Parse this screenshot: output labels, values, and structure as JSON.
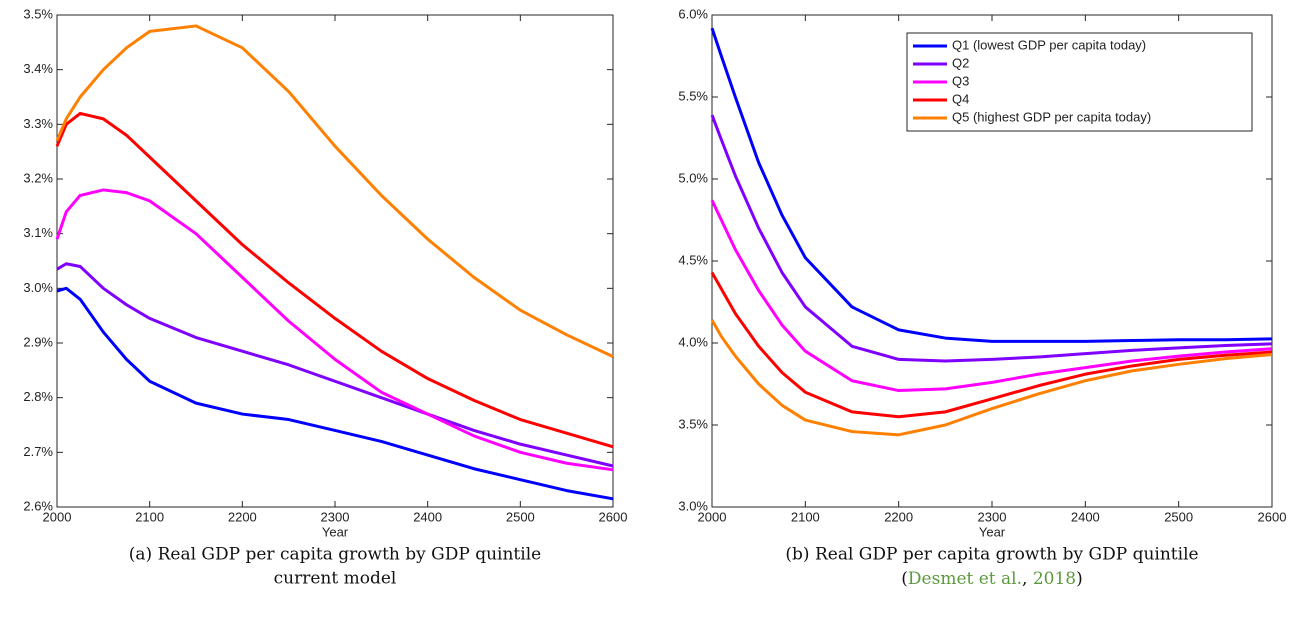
{
  "chart_data": [
    {
      "type": "line",
      "x": [
        2000,
        2010,
        2025,
        2050,
        2075,
        2100,
        2150,
        2200,
        2250,
        2300,
        2350,
        2400,
        2450,
        2500,
        2550,
        2600
      ],
      "xlim": [
        2000,
        2600
      ],
      "xticks": [
        2000,
        2100,
        2200,
        2300,
        2400,
        2500,
        2600
      ],
      "xlabel": "Year",
      "ylim": [
        2.6,
        3.5
      ],
      "yticks": [
        {
          "value": 2.6,
          "label": "2.6%"
        },
        {
          "value": 2.7,
          "label": "2.7%"
        },
        {
          "value": 2.8,
          "label": "2.8%"
        },
        {
          "value": 2.9,
          "label": "2.9%"
        },
        {
          "value": 3.0,
          "label": "3.0%"
        },
        {
          "value": 3.1,
          "label": "3.1%"
        },
        {
          "value": 3.2,
          "label": "3.2%"
        },
        {
          "value": 3.3,
          "label": "3.3%"
        },
        {
          "value": 3.4,
          "label": "3.4%"
        },
        {
          "value": 3.5,
          "label": "3.5%"
        }
      ],
      "series": [
        {
          "color": "#0000ff",
          "values": [
            2.995,
            3.0,
            2.98,
            2.92,
            2.87,
            2.83,
            2.79,
            2.77,
            2.76,
            2.74,
            2.72,
            2.695,
            2.67,
            2.65,
            2.63,
            2.615
          ]
        },
        {
          "color": "#7f00ff",
          "values": [
            3.035,
            3.045,
            3.04,
            3.0,
            2.97,
            2.945,
            2.91,
            2.885,
            2.86,
            2.83,
            2.8,
            2.77,
            2.74,
            2.715,
            2.695,
            2.675
          ]
        },
        {
          "color": "#ff00ff",
          "values": [
            3.09,
            3.14,
            3.17,
            3.18,
            3.175,
            3.16,
            3.1,
            3.02,
            2.94,
            2.87,
            2.81,
            2.77,
            2.73,
            2.7,
            2.68,
            2.668
          ]
        },
        {
          "color": "#ff0000",
          "values": [
            3.26,
            3.3,
            3.32,
            3.31,
            3.28,
            3.24,
            3.16,
            3.08,
            3.01,
            2.945,
            2.885,
            2.835,
            2.795,
            2.76,
            2.735,
            2.71
          ]
        },
        {
          "color": "#ff8000",
          "values": [
            3.27,
            3.31,
            3.35,
            3.4,
            3.44,
            3.47,
            3.48,
            3.44,
            3.36,
            3.26,
            3.17,
            3.09,
            3.02,
            2.96,
            2.915,
            2.875
          ]
        }
      ],
      "caption": [
        "(a) Real GDP per capita growth by GDP quintile",
        "current model"
      ]
    },
    {
      "type": "line",
      "x": [
        2000,
        2010,
        2025,
        2050,
        2075,
        2100,
        2150,
        2200,
        2250,
        2300,
        2350,
        2400,
        2450,
        2500,
        2550,
        2600
      ],
      "xlim": [
        2000,
        2600
      ],
      "xticks": [
        2000,
        2100,
        2200,
        2300,
        2400,
        2500,
        2600
      ],
      "xlabel": "Year",
      "ylim": [
        3.0,
        6.0
      ],
      "yticks": [
        {
          "value": 3.0,
          "label": "3.0%"
        },
        {
          "value": 3.5,
          "label": "3.5%"
        },
        {
          "value": 4.0,
          "label": "4.0%"
        },
        {
          "value": 4.5,
          "label": "4.5%"
        },
        {
          "value": 5.0,
          "label": "5.0%"
        },
        {
          "value": 5.5,
          "label": "5.5%"
        },
        {
          "value": 6.0,
          "label": "6.0%"
        }
      ],
      "legend": "northeast",
      "series": [
        {
          "name": "Q1 (lowest GDP per capita today)",
          "color": "#0000ff",
          "values": [
            5.92,
            5.75,
            5.5,
            5.1,
            4.78,
            4.52,
            4.22,
            4.08,
            4.03,
            4.01,
            4.01,
            4.01,
            4.015,
            4.02,
            4.02,
            4.025
          ]
        },
        {
          "name": "Q2",
          "color": "#7f00ff",
          "values": [
            5.39,
            5.24,
            5.02,
            4.7,
            4.43,
            4.22,
            3.98,
            3.9,
            3.89,
            3.9,
            3.915,
            3.935,
            3.955,
            3.97,
            3.985,
            3.995
          ]
        },
        {
          "name": "Q3",
          "color": "#ff00ff",
          "values": [
            4.87,
            4.75,
            4.57,
            4.32,
            4.11,
            3.95,
            3.77,
            3.71,
            3.72,
            3.76,
            3.81,
            3.85,
            3.89,
            3.92,
            3.945,
            3.965
          ]
        },
        {
          "name": "Q4",
          "color": "#ff0000",
          "values": [
            4.43,
            4.33,
            4.18,
            3.98,
            3.82,
            3.7,
            3.58,
            3.55,
            3.58,
            3.66,
            3.74,
            3.81,
            3.86,
            3.9,
            3.925,
            3.945
          ]
        },
        {
          "name": "Q5 (highest GDP per capita today)",
          "color": "#ff8000",
          "values": [
            4.14,
            4.04,
            3.92,
            3.75,
            3.62,
            3.53,
            3.46,
            3.44,
            3.5,
            3.6,
            3.69,
            3.77,
            3.83,
            3.87,
            3.905,
            3.93
          ]
        }
      ],
      "caption": [
        "(b) Real GDP per capita growth by GDP quintile",
        [
          {
            "text": "("
          },
          {
            "text": "Desmet et al.",
            "cite": true
          },
          {
            "text": ", "
          },
          {
            "text": "2018",
            "cite": true
          },
          {
            "text": ")"
          }
        ]
      ]
    }
  ]
}
